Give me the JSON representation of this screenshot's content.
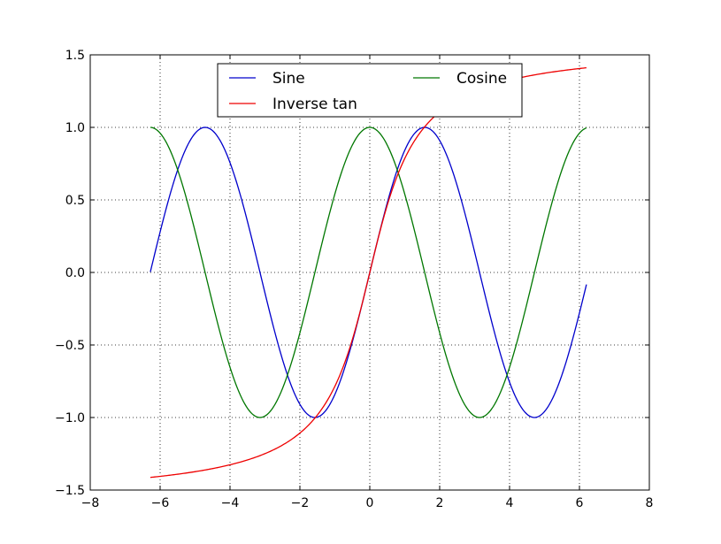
{
  "chart_data": {
    "type": "line",
    "xlim": [
      -8,
      8
    ],
    "ylim": [
      -1.5,
      1.5
    ],
    "x_ticks": [
      -8,
      -6,
      -4,
      -2,
      0,
      2,
      4,
      6,
      8
    ],
    "y_ticks": [
      -1.5,
      -1.0,
      -0.5,
      0.0,
      0.5,
      1.0,
      1.5
    ],
    "x_tick_labels": [
      "−8",
      "−6",
      "−4",
      "−2",
      "0",
      "2",
      "4",
      "6",
      "8"
    ],
    "y_tick_labels": [
      "−1.5",
      "−1.0",
      "−0.5",
      "0.0",
      "0.5",
      "1.0",
      "1.5"
    ],
    "grid": true,
    "legend_position": "upper-center",
    "x_range": [
      -6.28,
      6.2
    ],
    "sample_count": 300,
    "series": [
      {
        "name": "Sine",
        "function": "sin",
        "color": "#0000cc"
      },
      {
        "name": "Cosine",
        "function": "cos",
        "color": "#007700"
      },
      {
        "name": "Inverse tan",
        "function": "arctan",
        "color": "#ee0000"
      }
    ],
    "legend": [
      {
        "label": "Sine",
        "series": 0
      },
      {
        "label": "Cosine",
        "series": 1
      },
      {
        "label": "Inverse tan",
        "series": 2
      }
    ]
  }
}
